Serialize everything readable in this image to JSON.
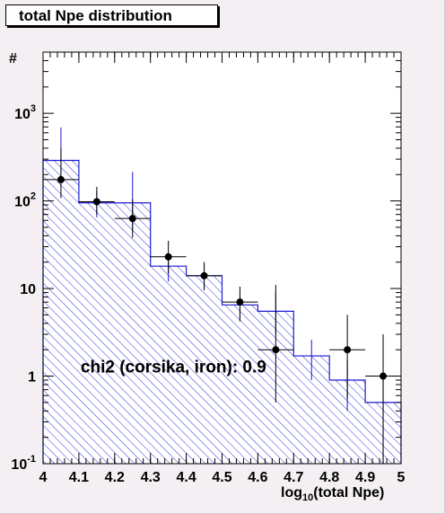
{
  "chart_data": {
    "type": "bar",
    "title": "total Npe distribution",
    "ylabel": "#",
    "xlabel_main": "log",
    "xlabel_sub": "10",
    "xlabel_rest": "(total Npe)",
    "xlim": [
      4,
      5
    ],
    "ylim": [
      0.1,
      5000
    ],
    "yscale": "log",
    "xticks": [
      "4",
      "4.1",
      "4.2",
      "4.3",
      "4.4",
      "4.5",
      "4.6",
      "4.7",
      "4.8",
      "4.9",
      "5"
    ],
    "xtick_values": [
      4,
      4.1,
      4.2,
      4.3,
      4.4,
      4.5,
      4.6,
      4.7,
      4.8,
      4.9,
      5
    ],
    "yticks": [
      {
        "value": 0.1,
        "base": "10",
        "exp": "-1"
      },
      {
        "value": 1,
        "base": "1",
        "exp": ""
      },
      {
        "value": 10,
        "base": "10",
        "exp": ""
      },
      {
        "value": 100,
        "base": "10",
        "exp": "2"
      },
      {
        "value": 1000,
        "base": "10",
        "exp": "3"
      }
    ],
    "histogram": {
      "bin_edges": [
        4.0,
        4.1,
        4.2,
        4.3,
        4.4,
        4.5,
        4.6,
        4.7,
        4.8,
        4.9,
        5.0
      ],
      "values": [
        290,
        95,
        95,
        18,
        14,
        6.5,
        5.5,
        1.7,
        0.9,
        0.5
      ],
      "errors_low": [
        150,
        30,
        50,
        6,
        4,
        2,
        2.5,
        0.8,
        0.5,
        0.5
      ],
      "errors_high": [
        400,
        35,
        120,
        7,
        5,
        2.5,
        3.5,
        0.9,
        0.6,
        0.5
      ]
    },
    "points": {
      "x": [
        4.05,
        4.15,
        4.25,
        4.35,
        4.45,
        4.55,
        4.65,
        4.85,
        4.95
      ],
      "y": [
        175,
        98,
        63,
        23,
        14,
        7,
        2,
        2,
        1
      ],
      "y_low": [
        108,
        70,
        38,
        15,
        9.5,
        4.2,
        0.5,
        0.55,
        0.1
      ],
      "y_high": [
        400,
        145,
        105,
        35,
        20,
        10.5,
        11,
        5,
        3
      ]
    },
    "annotation": "chi2 (corsika, iron): 0.9",
    "colors": {
      "histogram": "#1a1ad6",
      "points": "#000000",
      "frame_bg": "#f3eff3"
    }
  }
}
